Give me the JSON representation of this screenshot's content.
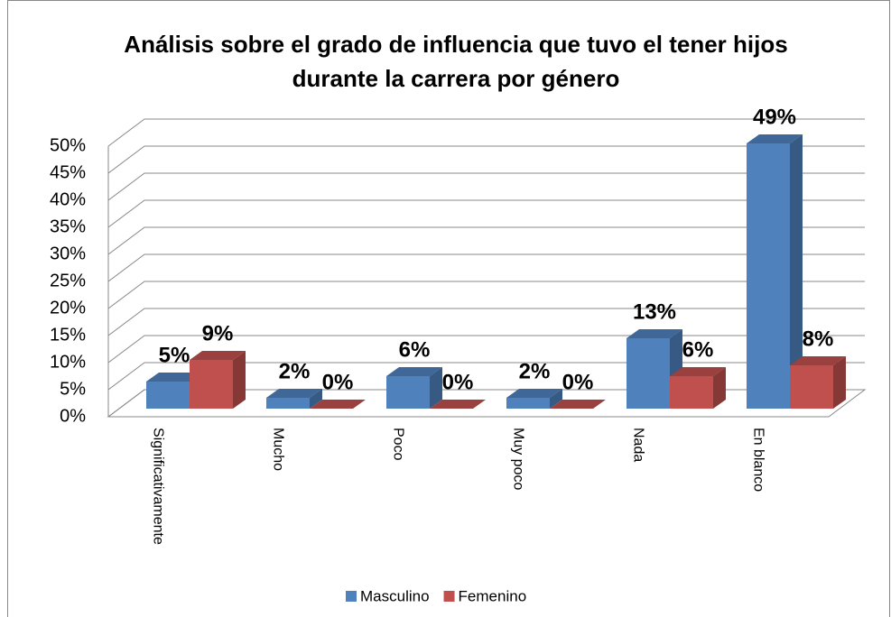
{
  "chart_data": {
    "type": "bar3d",
    "title": "Análisis sobre el grado de influencia que tuvo el tener hijos durante la carrera por género",
    "categories": [
      "Significativamente",
      "Mucho",
      "Poco",
      "Muy poco",
      "Nada",
      "En blanco"
    ],
    "series": [
      {
        "name": "Masculino",
        "color": "#4f81bd",
        "values": [
          5,
          2,
          6,
          2,
          13,
          49
        ],
        "value_labels": [
          "5%",
          "2%",
          "6%",
          "2%",
          "13%",
          "49%"
        ]
      },
      {
        "name": "Femenino",
        "color": "#c0504d",
        "values": [
          9,
          0,
          0,
          0,
          6,
          8
        ],
        "value_labels": [
          "9%",
          "0%",
          "0%",
          "0%",
          "6%",
          "8%"
        ]
      }
    ],
    "ylim": [
      0,
      50
    ],
    "yticks": [
      {
        "value": 0,
        "label": "0%"
      },
      {
        "value": 5,
        "label": "5%"
      },
      {
        "value": 10,
        "label": "10%"
      },
      {
        "value": 15,
        "label": "15%"
      },
      {
        "value": 20,
        "label": "20%"
      },
      {
        "value": 25,
        "label": "25%"
      },
      {
        "value": 30,
        "label": "30%"
      },
      {
        "value": 35,
        "label": "35%"
      },
      {
        "value": 40,
        "label": "40%"
      },
      {
        "value": 45,
        "label": "45%"
      },
      {
        "value": 50,
        "label": "50%"
      }
    ],
    "grid": true,
    "legend": "bottom"
  }
}
